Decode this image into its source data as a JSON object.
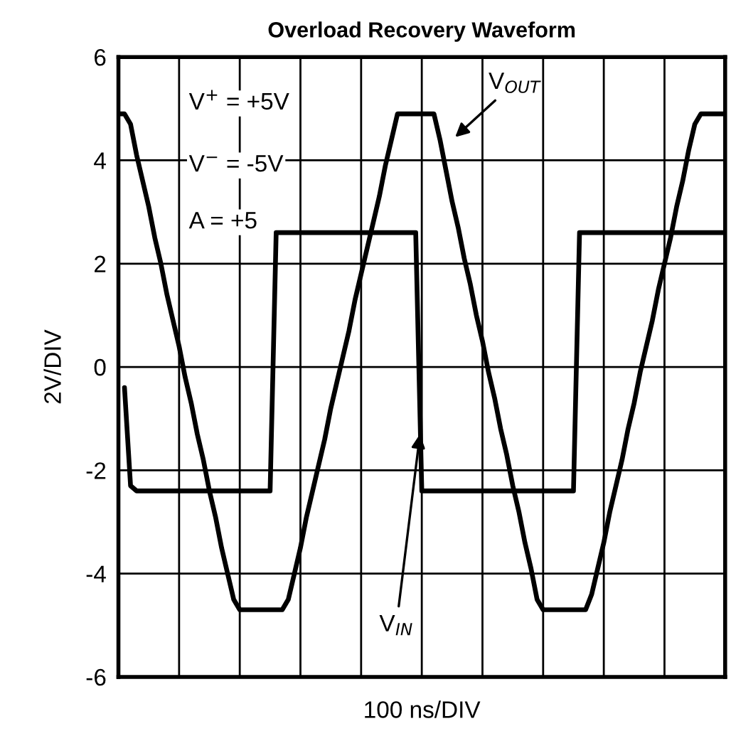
{
  "chart_data": {
    "type": "line",
    "title": "Overload Recovery Waveform",
    "xlabel": "100 ns/DIV",
    "ylabel": "2V/DIV",
    "categories": [
      null,
      null,
      null,
      null,
      null,
      null,
      null,
      null,
      null,
      null,
      null,
      null,
      null,
      null,
      null,
      null,
      null,
      null,
      null,
      null,
      null,
      null,
      null,
      null,
      null,
      null,
      null,
      null,
      null,
      null,
      null,
      null,
      null,
      null,
      null,
      null,
      null,
      null,
      null,
      null,
      null,
      null,
      null,
      null,
      null,
      null,
      null,
      null,
      null,
      null,
      null,
      null,
      null,
      null,
      null,
      null,
      null,
      null,
      null,
      null,
      null,
      null,
      null,
      null,
      null,
      null,
      null,
      null,
      null,
      null,
      null,
      null,
      null,
      null,
      null,
      null,
      null,
      null,
      null,
      null,
      null,
      null,
      null,
      null,
      null,
      null,
      null,
      null,
      null,
      null,
      null,
      null,
      null,
      null,
      null,
      null,
      null,
      null,
      null,
      null,
      null
    ],
    "series": [
      {
        "name": "V$_{OUT}$",
        "color": "#000000",
        "values": [
          4.9,
          4.9,
          4.7,
          4.1,
          3.6,
          3.1,
          2.5,
          2.0,
          1.4,
          0.9,
          0.4,
          -0.2,
          -0.7,
          -1.3,
          -1.8,
          -2.4,
          -2.9,
          -3.5,
          -4.0,
          -4.5,
          -4.7,
          -4.7,
          -4.7,
          -4.7,
          -4.7,
          -4.7,
          -4.7,
          -4.7,
          -4.5,
          -4.0,
          -3.5,
          -2.9,
          -2.4,
          -1.9,
          -1.4,
          -0.8,
          -0.3,
          0.2,
          0.7,
          1.3,
          1.8,
          2.3,
          2.8,
          3.3,
          3.9,
          4.4,
          4.9,
          4.9,
          4.9,
          4.9,
          4.9,
          4.9,
          4.9,
          4.4,
          3.8,
          3.2,
          2.7,
          2.1,
          1.6,
          1.0,
          0.5,
          -0.1,
          -0.6,
          -1.2,
          -1.7,
          -2.3,
          -2.8,
          -3.4,
          -3.9,
          -4.5,
          -4.7,
          -4.7,
          -4.7,
          -4.7,
          -4.7,
          -4.7,
          -4.7,
          -4.7,
          -4.4,
          -3.9,
          -3.4,
          -2.8,
          -2.3,
          -1.8,
          -1.2,
          -0.7,
          -0.1,
          0.4,
          0.9,
          1.5,
          2.0,
          2.5,
          3.1,
          3.6,
          4.2,
          4.7,
          4.9,
          4.9,
          4.9,
          4.9,
          4.9
        ]
      },
      {
        "name": "V$_{IN}$",
        "color": "#000000",
        "values": [
          null,
          -0.4,
          -2.3,
          -2.4,
          -2.4,
          -2.4,
          -2.4,
          -2.4,
          -2.4,
          -2.4,
          -2.4,
          -2.4,
          -2.4,
          -2.4,
          -2.4,
          -2.4,
          -2.4,
          -2.4,
          -2.4,
          -2.4,
          -2.4,
          -2.4,
          -2.4,
          -2.4,
          -2.4,
          -2.4,
          2.6,
          2.6,
          2.6,
          2.6,
          2.6,
          2.6,
          2.6,
          2.6,
          2.6,
          2.6,
          2.6,
          2.6,
          2.6,
          2.6,
          2.6,
          2.6,
          2.6,
          2.6,
          2.6,
          2.6,
          2.6,
          2.6,
          2.6,
          2.6,
          -2.4,
          -2.4,
          -2.4,
          -2.4,
          -2.4,
          -2.4,
          -2.4,
          -2.4,
          -2.4,
          -2.4,
          -2.4,
          -2.4,
          -2.4,
          -2.4,
          -2.4,
          -2.4,
          -2.4,
          -2.4,
          -2.4,
          -2.4,
          -2.4,
          -2.4,
          -2.4,
          -2.4,
          -2.4,
          -2.4,
          2.6,
          2.6,
          2.6,
          2.6,
          2.6,
          2.6,
          2.6,
          2.6,
          2.6,
          2.6,
          2.6,
          2.6,
          2.6,
          2.6,
          2.6,
          2.6,
          2.6,
          2.6,
          2.6,
          2.6,
          2.6,
          2.6,
          2.6,
          2.6,
          2.6
        ]
      }
    ],
    "ylim": [
      -6,
      6
    ],
    "yticks": [
      -6,
      -4,
      -2,
      0,
      2,
      4,
      6
    ],
    "grid": true,
    "tick_labels": "y",
    "line_style": "solid",
    "annotations": [
      "V$^{+}$ = +5V",
      "V$^{−}$ = -5V",
      "A = +5"
    ]
  }
}
